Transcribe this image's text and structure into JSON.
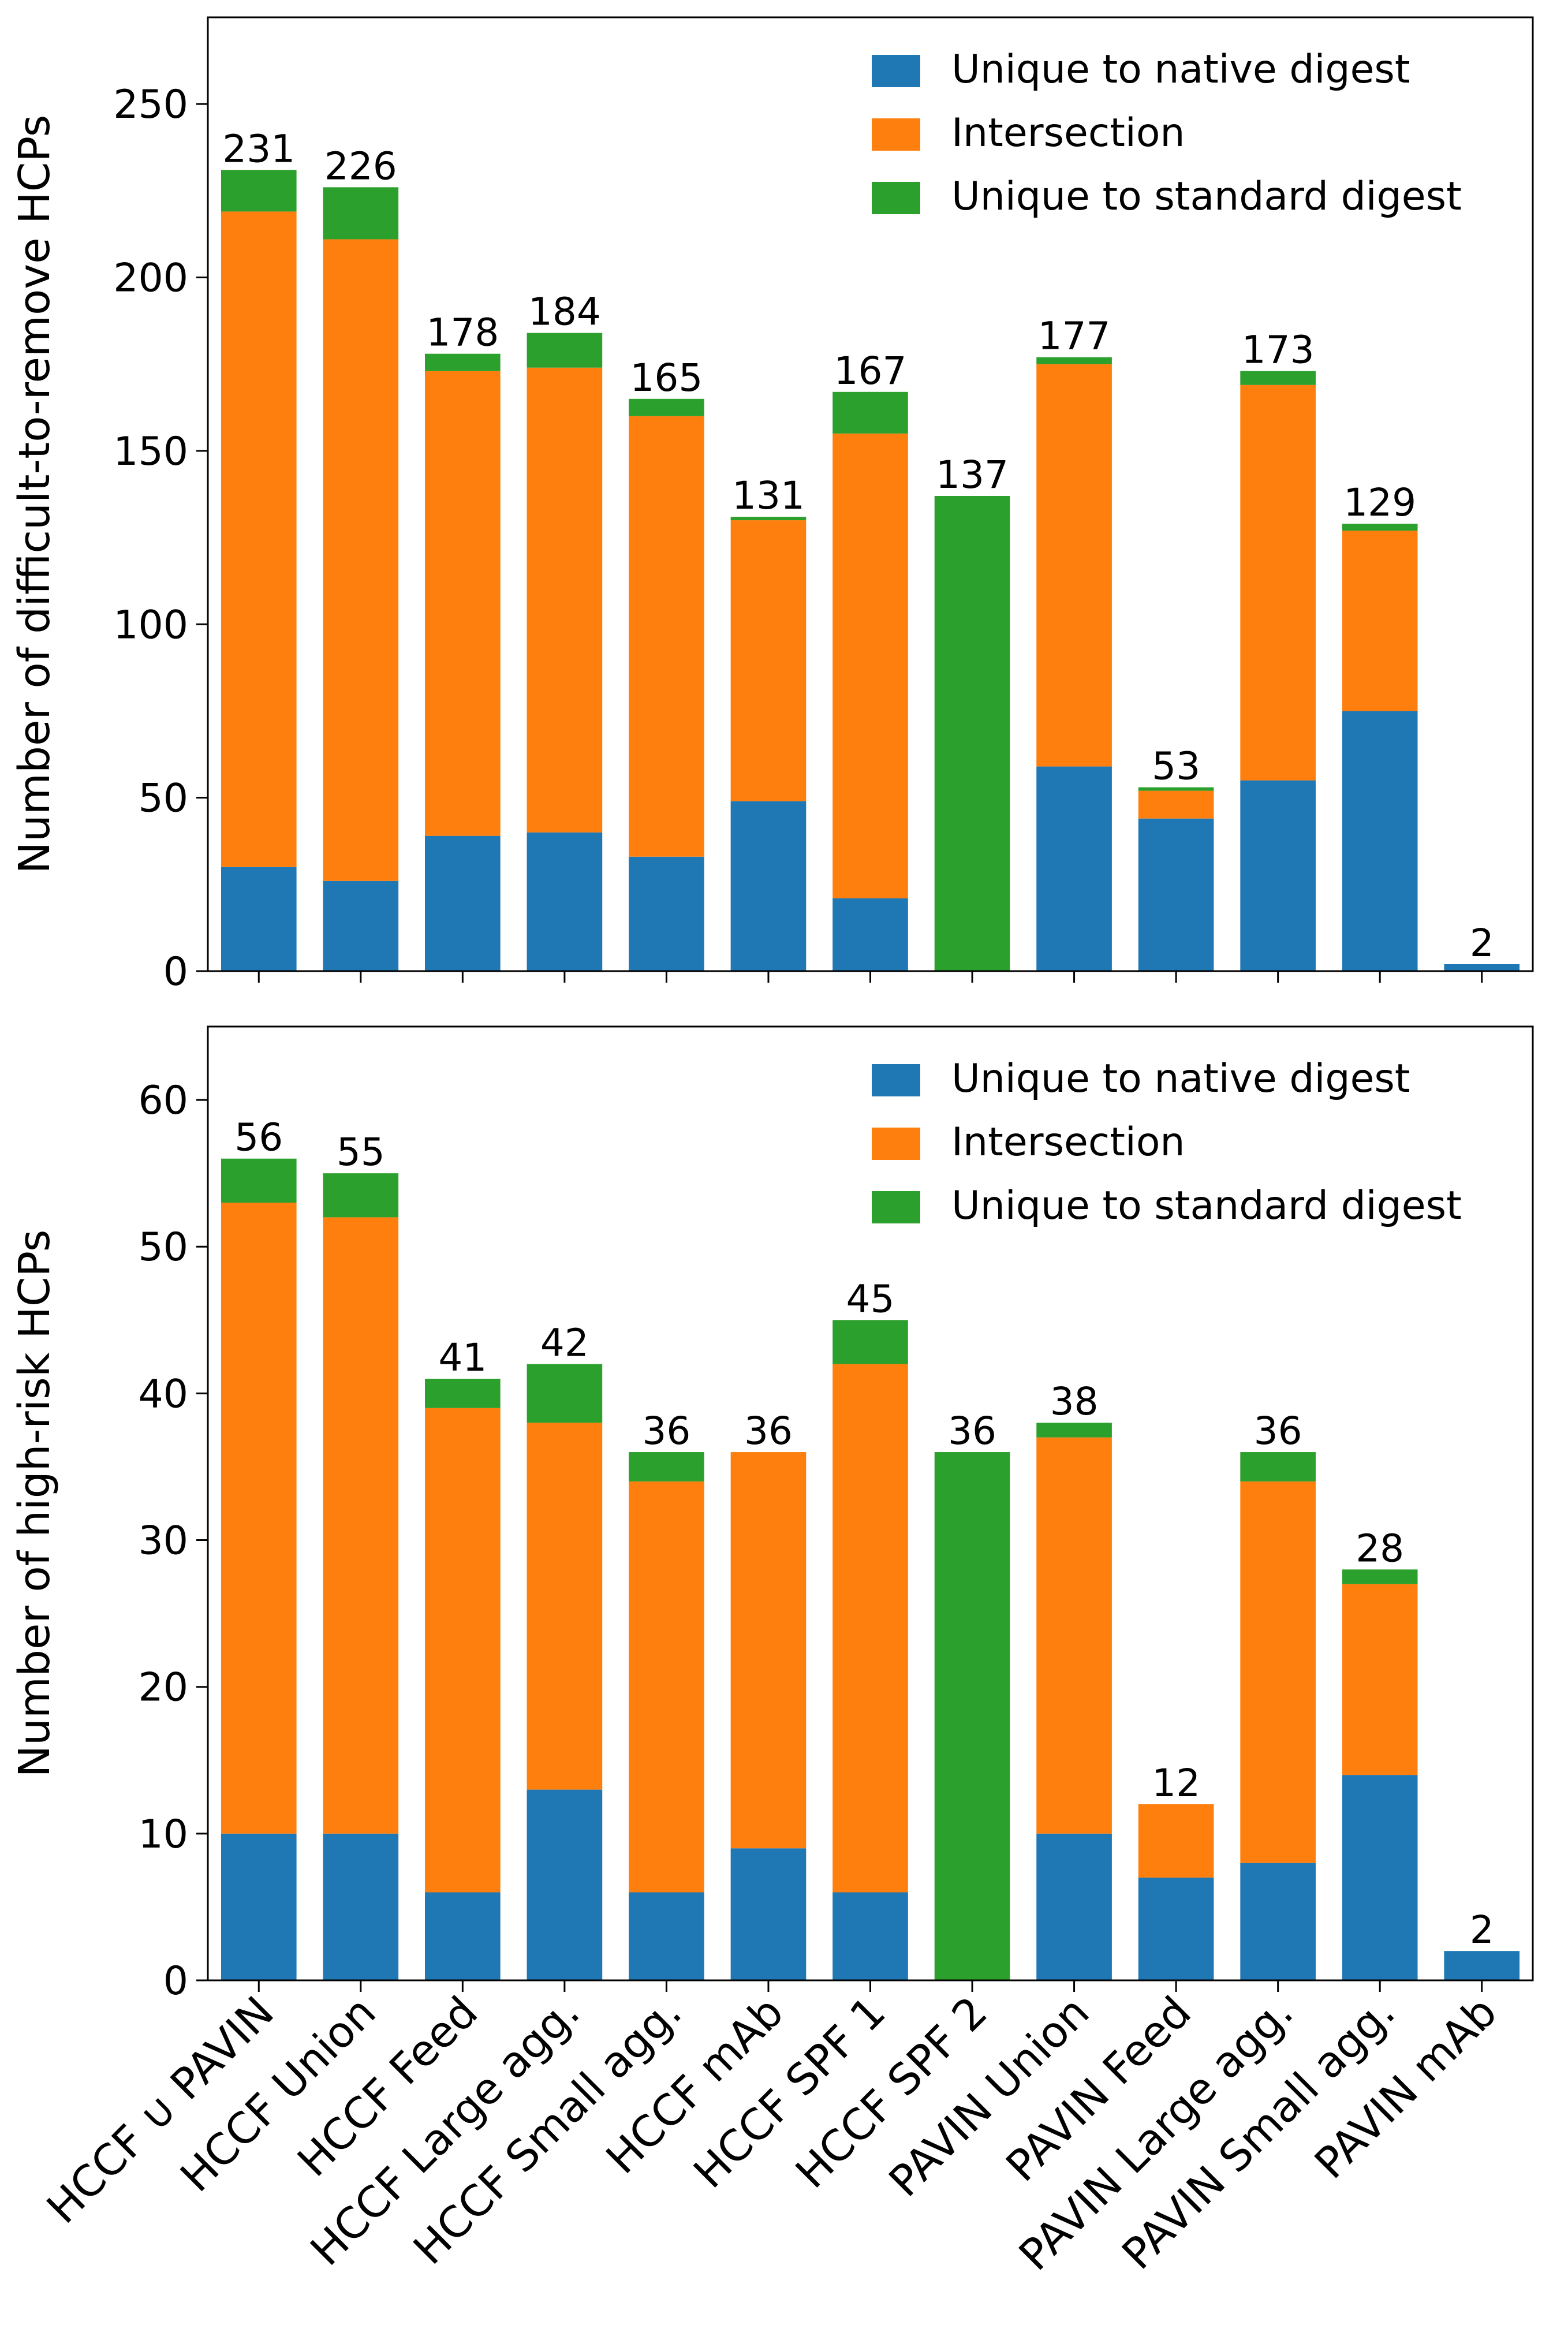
{
  "colors": {
    "native": "#1f77b4",
    "intersection": "#ff7f0e",
    "standard": "#2ca02c"
  },
  "categories": [
    "HCCF ∪ PAVIN",
    "HCCF Union",
    "HCCF Feed",
    "HCCF Large agg.",
    "HCCF Small agg.",
    "HCCF mAb",
    "HCCF SPF 1",
    "HCCF SPF 2",
    "PAVIN Union",
    "PAVIN Feed",
    "PAVIN Large agg.",
    "PAVIN Small agg.",
    "PAVIN mAb"
  ],
  "chart_data": [
    {
      "type": "bar",
      "stacked": true,
      "ylabel": "Number of difficult-to-remove HCPs",
      "ylim": [
        0,
        275
      ],
      "yticks": [
        0,
        50,
        100,
        150,
        200,
        250
      ],
      "legend_position": "upper-right",
      "series": [
        {
          "name": "Unique to native digest",
          "color_key": "native",
          "values": [
            30,
            26,
            39,
            40,
            33,
            49,
            21,
            0,
            59,
            44,
            55,
            75,
            2
          ]
        },
        {
          "name": "Intersection",
          "color_key": "intersection",
          "values": [
            189,
            185,
            134,
            134,
            127,
            81,
            134,
            0,
            116,
            8,
            114,
            52,
            0
          ]
        },
        {
          "name": "Unique to standard digest",
          "color_key": "standard",
          "values": [
            12,
            15,
            5,
            10,
            5,
            1,
            12,
            137,
            2,
            1,
            4,
            2,
            0
          ]
        }
      ],
      "totals": [
        231,
        226,
        178,
        184,
        165,
        131,
        167,
        137,
        177,
        53,
        173,
        129,
        2
      ]
    },
    {
      "type": "bar",
      "stacked": true,
      "ylabel": "Number of high-risk HCPs",
      "ylim": [
        0,
        65
      ],
      "yticks": [
        0,
        10,
        20,
        30,
        40,
        50,
        60
      ],
      "legend_position": "upper-right",
      "series": [
        {
          "name": "Unique to native digest",
          "color_key": "native",
          "values": [
            10,
            10,
            6,
            13,
            6,
            9,
            6,
            0,
            10,
            7,
            8,
            14,
            2
          ]
        },
        {
          "name": "Intersection",
          "color_key": "intersection",
          "values": [
            43,
            42,
            33,
            25,
            28,
            27,
            36,
            0,
            27,
            5,
            26,
            13,
            0
          ]
        },
        {
          "name": "Unique to standard digest",
          "color_key": "standard",
          "values": [
            3,
            3,
            2,
            4,
            2,
            0,
            3,
            36,
            1,
            0,
            2,
            1,
            0
          ]
        }
      ],
      "totals": [
        56,
        55,
        41,
        42,
        36,
        36,
        45,
        36,
        38,
        12,
        36,
        28,
        2
      ]
    }
  ]
}
